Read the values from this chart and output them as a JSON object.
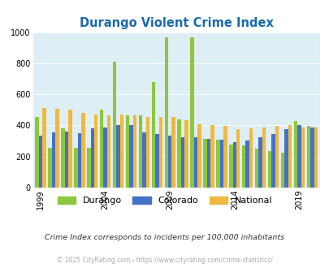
{
  "title": "Durango Violent Crime Index",
  "title_color": "#1a6aad",
  "subtitle": "Crime Index corresponds to incidents per 100,000 inhabitants",
  "footer": "© 2025 CityRating.com - https://www.cityrating.com/crime-statistics/",
  "years": [
    1999,
    2000,
    2001,
    2002,
    2003,
    2004,
    2005,
    2006,
    2007,
    2008,
    2009,
    2010,
    2011,
    2012,
    2013,
    2014,
    2015,
    2016,
    2017,
    2018,
    2019,
    2020
  ],
  "durango": [
    455,
    255,
    380,
    255,
    255,
    500,
    810,
    465,
    465,
    680,
    965,
    440,
    965,
    315,
    310,
    275,
    270,
    250,
    235,
    225,
    430,
    395
  ],
  "colorado": [
    335,
    355,
    360,
    350,
    380,
    385,
    400,
    400,
    355,
    345,
    335,
    325,
    325,
    315,
    310,
    290,
    305,
    325,
    345,
    375,
    400,
    385
  ],
  "national": [
    510,
    505,
    500,
    480,
    470,
    465,
    470,
    465,
    455,
    455,
    455,
    435,
    410,
    400,
    395,
    375,
    380,
    385,
    395,
    400,
    385,
    385
  ],
  "durango_color": "#8dc63f",
  "colorado_color": "#4472c4",
  "national_color": "#f0b840",
  "bg_color": "#ddeef5",
  "ylim": [
    0,
    1000
  ],
  "yticks": [
    0,
    200,
    400,
    600,
    800,
    1000
  ],
  "xlabel_ticks": [
    1999,
    2004,
    2009,
    2014,
    2019
  ],
  "figsize": [
    4.06,
    3.3
  ],
  "dpi": 100
}
